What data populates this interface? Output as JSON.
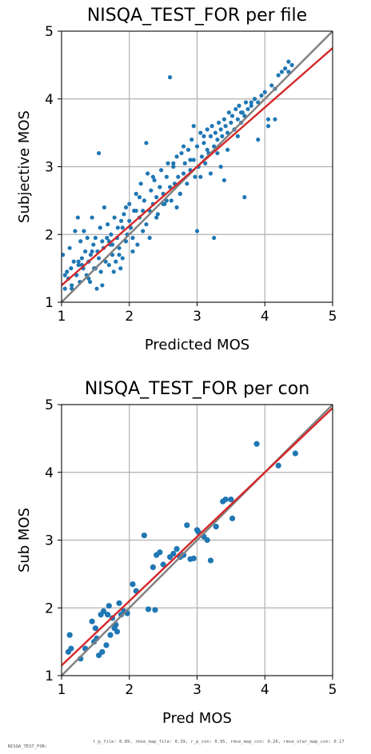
{
  "colors": {
    "scatter": "#1f77b4",
    "fit_line": "#d62728",
    "identity_line": "#808080",
    "grid": "#b0b0b0"
  },
  "chart_data": [
    {
      "type": "scatter",
      "title": "NISQA_TEST_FOR per file",
      "xlabel": "Predicted MOS",
      "ylabel": "Subjective MOS",
      "xlim": [
        1,
        5
      ],
      "ylim": [
        1,
        5
      ],
      "xticks": [
        "1",
        "2",
        "3",
        "4",
        "5"
      ],
      "yticks": [
        "1",
        "2",
        "3",
        "4",
        "5"
      ],
      "grid": true,
      "lines": [
        {
          "kind": "identity",
          "x": [
            1,
            5
          ],
          "y": [
            1,
            5
          ]
        },
        {
          "kind": "fit",
          "x": [
            1,
            5
          ],
          "y": [
            1.25,
            4.75
          ]
        }
      ],
      "x": [
        1.02,
        1.05,
        1.08,
        1.1,
        1.12,
        1.14,
        1.15,
        1.18,
        1.2,
        1.22,
        1.24,
        1.25,
        1.27,
        1.28,
        1.3,
        1.32,
        1.33,
        1.35,
        1.37,
        1.38,
        1.4,
        1.42,
        1.43,
        1.45,
        1.47,
        1.48,
        1.5,
        1.52,
        1.53,
        1.55,
        1.57,
        1.58,
        1.6,
        1.62,
        1.63,
        1.65,
        1.67,
        1.68,
        1.7,
        1.72,
        1.73,
        1.75,
        1.77,
        1.78,
        1.8,
        1.82,
        1.83,
        1.85,
        1.87,
        1.88,
        1.9,
        1.92,
        1.95,
        1.97,
        2.0,
        2.02,
        2.05,
        2.07,
        2.1,
        2.12,
        2.15,
        2.17,
        2.2,
        2.22,
        2.25,
        2.27,
        2.3,
        2.32,
        2.35,
        2.37,
        2.4,
        2.42,
        2.45,
        2.47,
        2.5,
        2.52,
        2.55,
        2.57,
        2.6,
        2.62,
        2.65,
        2.67,
        2.7,
        2.72,
        2.75,
        2.77,
        2.8,
        2.82,
        2.85,
        2.87,
        2.9,
        2.92,
        2.95,
        2.97,
        3.0,
        3.02,
        3.05,
        3.07,
        3.1,
        3.12,
        3.15,
        3.17,
        3.2,
        3.22,
        3.25,
        3.27,
        3.3,
        3.32,
        3.35,
        3.37,
        3.4,
        3.42,
        3.45,
        3.47,
        3.5,
        3.52,
        3.55,
        3.57,
        3.6,
        3.62,
        3.65,
        3.67,
        3.7,
        3.72,
        3.75,
        3.8,
        3.85,
        3.9,
        3.95,
        4.0,
        4.05,
        4.1,
        4.15,
        4.2,
        4.25,
        4.3,
        4.35,
        4.4,
        1.55,
        2.6,
        1.15,
        1.3,
        1.4,
        1.6,
        1.75,
        1.85,
        2.05,
        2.2,
        2.3,
        2.4,
        2.55,
        2.7,
        2.9,
        3.05,
        3.2,
        3.3,
        3.6,
        3.9,
        4.15,
        1.9,
        2.1,
        2.45,
        2.65,
        3.0,
        3.25,
        3.4,
        3.7,
        1.25,
        1.5,
        1.7,
        2.0,
        2.15,
        2.35,
        2.5,
        2.8,
        2.95,
        3.1,
        3.35,
        3.45,
        3.65,
        3.8,
        4.05,
        4.35,
        1.05,
        1.45,
        1.95,
        2.25,
        2.75,
        3.15
      ],
      "y": [
        1.7,
        1.2,
        1.45,
        1.35,
        1.8,
        1.5,
        1.25,
        1.6,
        2.05,
        1.4,
        2.25,
        1.55,
        1.3,
        1.9,
        1.65,
        1.5,
        2.05,
        1.75,
        1.4,
        1.95,
        1.6,
        1.3,
        1.7,
        2.25,
        1.85,
        1.5,
        1.95,
        1.2,
        1.75,
        1.65,
        2.1,
        1.45,
        1.9,
        1.8,
        2.4,
        1.6,
        1.95,
        2.15,
        1.55,
        1.85,
        2.0,
        1.7,
        1.45,
        2.25,
        1.6,
        1.95,
        2.1,
        1.8,
        1.5,
        2.2,
        1.65,
        2.3,
        1.9,
        2.0,
        2.45,
        2.1,
        1.75,
        2.35,
        2.6,
        1.85,
        2.25,
        2.75,
        2.05,
        2.5,
        2.15,
        2.9,
        2.35,
        2.65,
        2.45,
        2.8,
        2.55,
        2.3,
        2.7,
        2.95,
        2.6,
        2.45,
        2.85,
        3.05,
        2.7,
        2.5,
        3.0,
        2.75,
        3.15,
        2.85,
        2.6,
        3.2,
        2.9,
        3.05,
        2.75,
        3.25,
        2.95,
        3.4,
        3.1,
        2.85,
        3.3,
        3.0,
        3.5,
        3.15,
        3.35,
        3.05,
        3.55,
        3.2,
        3.45,
        3.6,
        3.3,
        3.5,
        3.4,
        3.65,
        3.55,
        3.45,
        3.7,
        3.6,
        3.5,
        3.8,
        3.65,
        3.75,
        3.55,
        3.85,
        3.7,
        3.9,
        3.65,
        3.8,
        3.75,
        3.95,
        3.85,
        3.9,
        4.0,
        3.95,
        4.05,
        4.1,
        3.7,
        4.2,
        4.15,
        4.35,
        4.4,
        4.45,
        4.4,
        4.5,
        3.2,
        4.32,
        1.2,
        1.55,
        1.35,
        1.25,
        1.85,
        1.7,
        1.95,
        2.35,
        1.95,
        2.25,
        2.5,
        2.4,
        3.1,
        2.85,
        2.9,
        3.2,
        3.45,
        3.4,
        3.7,
        2.1,
        2.35,
        2.7,
        3.05,
        2.05,
        1.95,
        2.8,
        2.55,
        1.6,
        1.5,
        1.9,
        2.2,
        2.55,
        2.85,
        2.45,
        3.3,
        3.6,
        3.45,
        3.0,
        3.25,
        3.8,
        3.95,
        3.6,
        4.55,
        1.4,
        1.75,
        2.4,
        3.35,
        2.6,
        3.25
      ]
    },
    {
      "type": "scatter",
      "title": "NISQA_TEST_FOR per con",
      "xlabel": "Pred MOS",
      "ylabel": "Sub MOS",
      "xlim": [
        1,
        5
      ],
      "ylim": [
        1,
        5
      ],
      "xticks": [
        "1",
        "2",
        "3",
        "4",
        "5"
      ],
      "yticks": [
        "1",
        "2",
        "3",
        "4",
        "5"
      ],
      "grid": true,
      "lines": [
        {
          "kind": "identity",
          "x": [
            1,
            5
          ],
          "y": [
            1,
            5
          ]
        },
        {
          "kind": "fit",
          "x": [
            1,
            5
          ],
          "y": [
            1.15,
            4.95
          ]
        }
      ],
      "x": [
        1.12,
        1.14,
        1.1,
        1.28,
        1.35,
        1.45,
        1.48,
        1.52,
        1.55,
        1.58,
        1.6,
        1.62,
        1.66,
        1.7,
        1.72,
        1.75,
        1.78,
        1.8,
        1.82,
        1.85,
        1.88,
        1.92,
        1.97,
        2.05,
        2.1,
        2.22,
        2.28,
        2.38,
        2.4,
        2.45,
        2.5,
        2.6,
        2.65,
        2.7,
        2.75,
        2.8,
        2.85,
        2.9,
        2.95,
        3.0,
        3.02,
        3.1,
        3.15,
        3.2,
        3.28,
        3.38,
        3.42,
        3.5,
        3.52,
        3.88,
        4.2,
        4.45,
        1.5,
        1.62,
        1.68,
        2.35
      ],
      "y": [
        1.6,
        1.4,
        1.35,
        1.25,
        1.4,
        1.8,
        1.5,
        1.55,
        1.3,
        1.9,
        1.35,
        1.95,
        1.45,
        2.03,
        1.6,
        1.85,
        1.7,
        1.75,
        1.65,
        2.07,
        1.9,
        1.95,
        1.92,
        2.35,
        2.25,
        3.07,
        1.98,
        1.97,
        2.78,
        2.82,
        2.64,
        2.75,
        2.8,
        2.87,
        2.75,
        2.78,
        3.22,
        2.72,
        2.73,
        3.15,
        3.12,
        3.05,
        3.0,
        2.7,
        3.2,
        3.57,
        3.6,
        3.6,
        3.32,
        4.42,
        4.1,
        4.28,
        1.7,
        1.95,
        1.9,
        2.6
      ]
    }
  ],
  "footer": {
    "left": "NISQA_TEST_FOR:",
    "right": "r_p_file: 0.89, rmse_map_file: 0.39, r_p_con: 0.95, rmse_map_con: 0.26, rmse_star_map_con: 0.17"
  }
}
